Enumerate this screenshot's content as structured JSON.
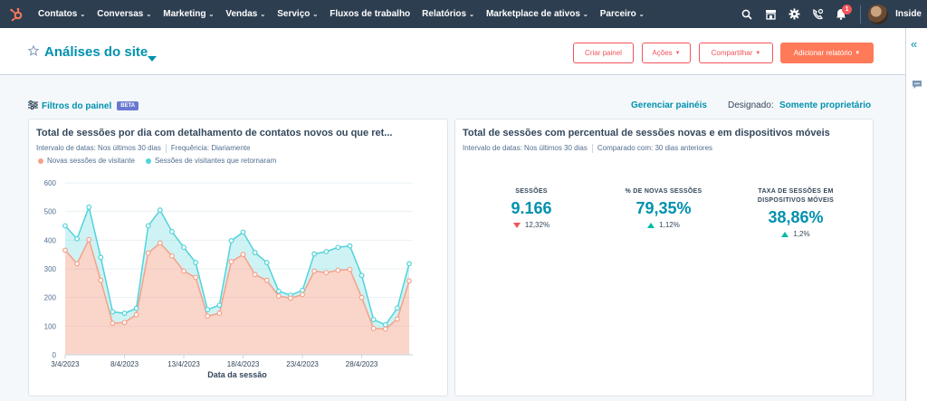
{
  "nav": {
    "items": [
      {
        "label": "Contatos",
        "caret": true
      },
      {
        "label": "Conversas",
        "caret": true
      },
      {
        "label": "Marketing",
        "caret": true
      },
      {
        "label": "Vendas",
        "caret": true
      },
      {
        "label": "Serviço",
        "caret": true
      },
      {
        "label": "Fluxos de trabalho",
        "caret": false
      },
      {
        "label": "Relatórios",
        "caret": true
      },
      {
        "label": "Marketplace de ativos",
        "caret": true
      },
      {
        "label": "Parceiro",
        "caret": true
      }
    ],
    "notification_count": "1",
    "account_name": "Inside"
  },
  "header": {
    "title": "Análises do site",
    "buttons": {
      "create_panel": "Criar painel",
      "actions": "Ações",
      "share": "Compartilhar",
      "add_report": "Adicionar relatório"
    }
  },
  "filters": {
    "label": "Filtros do painel",
    "badge": "BETA",
    "manage_link": "Gerenciar painéis",
    "assigned_label": "Designado:",
    "assigned_value": "Somente proprietário"
  },
  "card_left": {
    "title": "Total de sessões por dia com detalhamento de contatos novos ou que ret...",
    "date_range": "Intervalo de datas: Nos últimos 30 dias",
    "frequency": "Frequência: Diariamente",
    "legend": [
      {
        "label": "Novas sessões de visitante",
        "color": "#f5a18a"
      },
      {
        "label": "Sessões de visitantes que retornaram",
        "color": "#51d3d9"
      }
    ]
  },
  "card_right": {
    "title": "Total de sessões com percentual de sessões novas e em dispositivos móveis",
    "date_range": "Intervalo de datas: Nos últimos 30 dias",
    "compared": "Comparado com: 30 dias anteriores",
    "kpis": [
      {
        "label": "SESSÕES",
        "value": "9.166",
        "change": "12,32%",
        "direction": "down"
      },
      {
        "label": "% DE NOVAS SESSÕES",
        "value": "79,35%",
        "change": "1,12%",
        "direction": "up"
      },
      {
        "label": "TAXA DE SESSÕES EM DISPOSITIVOS MÓVEIS",
        "value": "38,86%",
        "change": "1,2%",
        "direction": "up"
      }
    ]
  },
  "colors": {
    "nav_bg": "#2d3e50",
    "accent": "#0091ae",
    "orange": "#ff7a59",
    "new_sessions": "#f5a18a",
    "returning_sessions": "#51d3d9",
    "down": "#f2545b",
    "up": "#00bda5"
  },
  "chart_data": {
    "type": "area",
    "xlabel": "Data da sessão",
    "ylabel": "",
    "ylim": [
      0,
      600
    ],
    "yticks": [
      0,
      100,
      200,
      300,
      400,
      500,
      600
    ],
    "x": [
      "3/4/2023",
      "4/4/2023",
      "5/4/2023",
      "6/4/2023",
      "7/4/2023",
      "8/4/2023",
      "9/4/2023",
      "10/4/2023",
      "11/4/2023",
      "12/4/2023",
      "13/4/2023",
      "14/4/2023",
      "15/4/2023",
      "16/4/2023",
      "17/4/2023",
      "18/4/2023",
      "19/4/2023",
      "20/4/2023",
      "21/4/2023",
      "22/4/2023",
      "23/4/2023",
      "24/4/2023",
      "25/4/2023",
      "26/4/2023",
      "27/4/2023",
      "28/4/2023",
      "29/4/2023",
      "30/4/2023",
      "1/5/2023",
      "2/5/2023"
    ],
    "xticks": [
      "3/4/2023",
      "8/4/2023",
      "13/4/2023",
      "18/4/2023",
      "23/4/2023",
      "28/4/2023"
    ],
    "stacked": true,
    "series": [
      {
        "name": "Novas sessões de visitante",
        "values": [
          365,
          318,
          402,
          260,
          110,
          113,
          140,
          355,
          390,
          345,
          292,
          270,
          135,
          145,
          325,
          350,
          280,
          260,
          205,
          198,
          210,
          292,
          287,
          295,
          298,
          200,
          92,
          90,
          125,
          258
        ]
      },
      {
        "name": "Sessões de visitantes que retornaram",
        "values": [
          85,
          87,
          113,
          80,
          40,
          32,
          22,
          95,
          115,
          85,
          83,
          52,
          23,
          28,
          73,
          78,
          77,
          62,
          17,
          10,
          15,
          60,
          73,
          80,
          82,
          77,
          31,
          15,
          38,
          60
        ]
      }
    ]
  }
}
